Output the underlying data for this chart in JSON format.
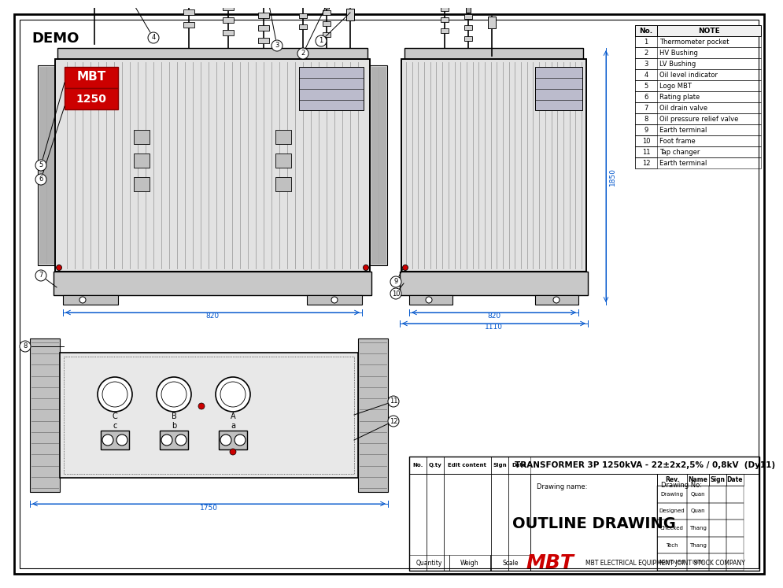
{
  "title": "DEMO",
  "bg_color": "#ffffff",
  "line_color": "#000000",
  "dim_color": "#0055cc",
  "red_color": "#cc0000",
  "note_rows": [
    [
      "1",
      "Thermometer pocket"
    ],
    [
      "2",
      "HV Bushing"
    ],
    [
      "3",
      "LV Bushing"
    ],
    [
      "4",
      "Oil level indicator"
    ],
    [
      "5",
      "Logo MBT"
    ],
    [
      "6",
      "Rating plate"
    ],
    [
      "7",
      "Oil drain valve"
    ],
    [
      "8",
      "Oil pressure relief valve"
    ],
    [
      "9",
      "Earth terminal"
    ],
    [
      "10",
      "Foot frame"
    ],
    [
      "11",
      "Tap changer"
    ],
    [
      "12",
      "Earth terminal"
    ]
  ],
  "transformer_name": "TRANSFORMER 3P 1250kVA - 22±2x2,5% / 0,8kV  (Dy11)",
  "drawing_name": "OUTLINE DRAWING",
  "drawing_name_label": "Drawing name:",
  "drawing_no_label": "Drawing No:",
  "company": "MBT ELECTRICAL EQUIPMENT JOINT STOCK COMPANY",
  "right_roles": [
    "Drawing",
    "Designed",
    "Checked",
    "Tech",
    "Approved"
  ],
  "right_names": [
    "Quan",
    "Quan",
    "Thang",
    "Thang",
    "Lam"
  ],
  "dim_820_front": "820",
  "dim_820_side": "820",
  "dim_1110": "1110",
  "dim_1850": "1850",
  "dim_1750": "1750"
}
